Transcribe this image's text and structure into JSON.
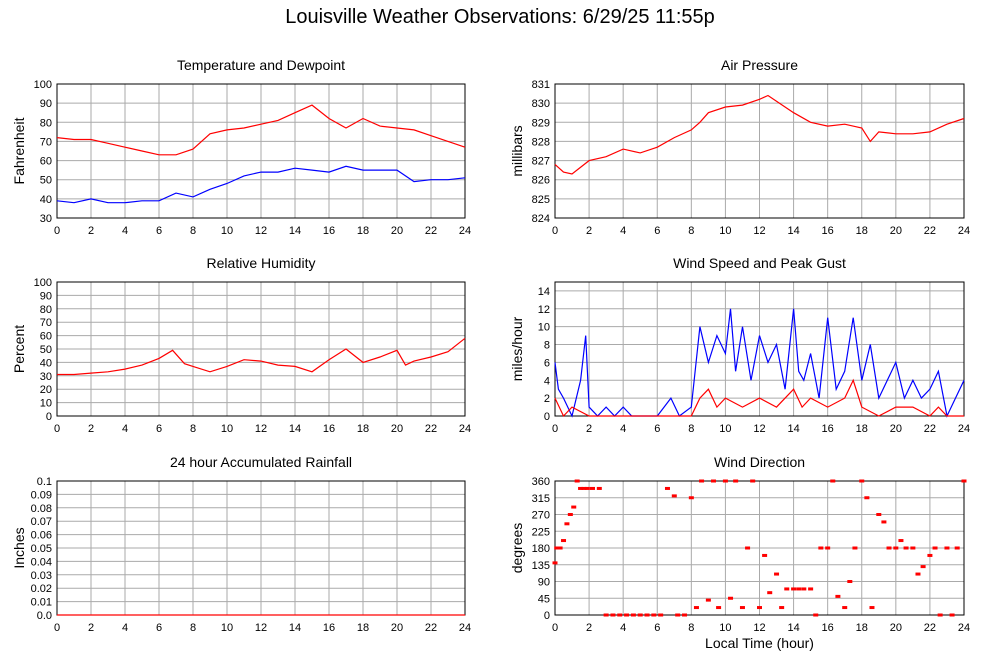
{
  "page_title": "Louisville Weather Observations: 6/29/25 11:55p",
  "colors": {
    "red": "#ff0000",
    "blue": "#0000ff",
    "grid": "#aaaaaa",
    "frame": "#000000"
  },
  "chart_data": [
    {
      "id": "temp",
      "type": "line",
      "title": "Temperature and Dewpoint",
      "xlabel": "",
      "ylabel": "Fahrenheit",
      "xlim": [
        0,
        24
      ],
      "ylim": [
        30,
        100
      ],
      "xticks": [
        0,
        2,
        4,
        6,
        8,
        10,
        12,
        14,
        16,
        18,
        20,
        22,
        24
      ],
      "yticks": [
        30,
        40,
        50,
        60,
        70,
        80,
        90,
        100
      ],
      "grid": true,
      "series": [
        {
          "color": "#ff0000",
          "x": [
            0,
            1,
            2,
            3,
            4,
            5,
            6,
            7,
            8,
            9,
            10,
            11,
            12,
            13,
            14,
            15,
            16,
            17,
            18,
            19,
            20,
            21,
            22,
            23,
            24
          ],
          "y": [
            72,
            71,
            71,
            69,
            67,
            65,
            63,
            63,
            66,
            74,
            76,
            77,
            79,
            81,
            85,
            89,
            82,
            77,
            82,
            78,
            77,
            76,
            73,
            70,
            67
          ]
        },
        {
          "color": "#0000ff",
          "x": [
            0,
            1,
            2,
            3,
            4,
            5,
            6,
            7,
            8,
            9,
            10,
            11,
            12,
            13,
            14,
            15,
            16,
            17,
            18,
            19,
            20,
            21,
            22,
            23,
            24
          ],
          "y": [
            39,
            38,
            40,
            38,
            38,
            39,
            39,
            43,
            41,
            45,
            48,
            52,
            54,
            54,
            56,
            55,
            54,
            57,
            55,
            55,
            55,
            49,
            50,
            50,
            51
          ]
        }
      ]
    },
    {
      "id": "pressure",
      "type": "line",
      "title": "Air Pressure",
      "xlabel": "",
      "ylabel": "millibars",
      "xlim": [
        0,
        24
      ],
      "ylim": [
        824,
        831
      ],
      "xticks": [
        0,
        2,
        4,
        6,
        8,
        10,
        12,
        14,
        16,
        18,
        20,
        22,
        24
      ],
      "yticks": [
        824,
        825,
        826,
        827,
        828,
        829,
        830,
        831
      ],
      "grid": true,
      "series": [
        {
          "color": "#ff0000",
          "x": [
            0,
            0.5,
            1,
            2,
            3,
            4,
            5,
            6,
            7,
            8,
            8.5,
            9,
            10,
            11,
            12,
            12.5,
            13,
            14,
            15,
            16,
            17,
            18,
            18.5,
            19,
            20,
            21,
            22,
            23,
            24
          ],
          "y": [
            826.8,
            826.4,
            826.3,
            827,
            827.2,
            827.6,
            827.4,
            827.7,
            828.2,
            828.6,
            829,
            829.5,
            829.8,
            829.9,
            830.2,
            830.4,
            830.1,
            829.5,
            829,
            828.8,
            828.9,
            828.7,
            828.0,
            828.5,
            828.4,
            828.4,
            828.5,
            828.9,
            829.2
          ]
        }
      ]
    },
    {
      "id": "humidity",
      "type": "line",
      "title": "Relative Humidity",
      "xlabel": "",
      "ylabel": "Percent",
      "xlim": [
        0,
        24
      ],
      "ylim": [
        0,
        100
      ],
      "xticks": [
        0,
        2,
        4,
        6,
        8,
        10,
        12,
        14,
        16,
        18,
        20,
        22,
        24
      ],
      "yticks": [
        0,
        10,
        20,
        30,
        40,
        50,
        60,
        70,
        80,
        90,
        100
      ],
      "grid": true,
      "series": [
        {
          "color": "#ff0000",
          "x": [
            0,
            1,
            2,
            3,
            4,
            5,
            6,
            6.8,
            7.5,
            8,
            9,
            10,
            11,
            12,
            13,
            14,
            15,
            16,
            17,
            18,
            19,
            20,
            20.5,
            21,
            22,
            23,
            24
          ],
          "y": [
            31,
            31,
            32,
            33,
            35,
            38,
            43,
            49,
            39,
            37,
            33,
            37,
            42,
            41,
            38,
            37,
            33,
            42,
            50,
            40,
            44,
            49,
            38,
            41,
            44,
            48,
            58
          ]
        }
      ]
    },
    {
      "id": "wind",
      "type": "line",
      "title": "Wind Speed and Peak Gust",
      "xlabel": "",
      "ylabel": "miles/hour",
      "xlim": [
        0,
        24
      ],
      "ylim": [
        0,
        15
      ],
      "xticks": [
        0,
        2,
        4,
        6,
        8,
        10,
        12,
        14,
        16,
        18,
        20,
        22,
        24
      ],
      "yticks": [
        0,
        2,
        4,
        6,
        8,
        10,
        12,
        14
      ],
      "grid": true,
      "series": [
        {
          "color": "#0000ff",
          "x": [
            0,
            0.2,
            0.5,
            1,
            1.5,
            1.8,
            2,
            2.5,
            3,
            3.5,
            4,
            4.5,
            5,
            6,
            6.8,
            7.3,
            8,
            8.5,
            9,
            9.5,
            10,
            10.3,
            10.6,
            11,
            11.5,
            12,
            12.5,
            13,
            13.5,
            14,
            14.3,
            14.6,
            15,
            15.5,
            16,
            16.5,
            17,
            17.5,
            18,
            18.5,
            19,
            19.5,
            20,
            20.5,
            21,
            21.5,
            22,
            22.5,
            23,
            23.5,
            24
          ],
          "y": [
            6,
            3,
            2,
            0,
            4,
            9,
            1,
            0,
            1,
            0,
            1,
            0,
            0,
            0,
            2,
            0,
            1,
            10,
            6,
            9,
            7,
            12,
            5,
            10,
            4,
            9,
            6,
            8,
            3,
            12,
            5,
            4,
            7,
            2,
            11,
            3,
            5,
            11,
            4,
            8,
            2,
            4,
            6,
            2,
            4,
            2,
            3,
            5,
            0,
            2,
            4
          ]
        },
        {
          "color": "#ff0000",
          "x": [
            0,
            0.5,
            1,
            2,
            8,
            8.5,
            9,
            9.5,
            10,
            11,
            12,
            13,
            14,
            14.5,
            15,
            16,
            17,
            17.5,
            18,
            19,
            20,
            21,
            22,
            22.5,
            23,
            24
          ],
          "y": [
            2,
            0,
            1,
            0,
            0,
            2,
            3,
            1,
            2,
            1,
            2,
            1,
            3,
            1,
            2,
            1,
            2,
            4,
            1,
            0,
            1,
            1,
            0,
            1,
            0,
            0
          ]
        }
      ]
    },
    {
      "id": "rain",
      "type": "line",
      "title": "24 hour Accumulated Rainfall",
      "xlabel": "",
      "ylabel": "Inches",
      "xlim": [
        0,
        24
      ],
      "ylim": [
        0,
        0.1
      ],
      "xticks": [
        0,
        2,
        4,
        6,
        8,
        10,
        12,
        14,
        16,
        18,
        20,
        22,
        24
      ],
      "yticks": [
        0.0,
        0.01,
        0.02,
        0.03,
        0.04,
        0.05,
        0.06,
        0.07,
        0.08,
        0.09,
        0.1
      ],
      "yticklabels": [
        "0.0",
        "0.01",
        "0.02",
        "0.03",
        "0.04",
        "0.05",
        "0.06",
        "0.07",
        "0.08",
        "0.09",
        "0.1"
      ],
      "grid": true,
      "series": [
        {
          "color": "#ff0000",
          "x": [
            0,
            24
          ],
          "y": [
            0,
            0
          ]
        }
      ]
    },
    {
      "id": "direction",
      "type": "scatter",
      "title": "Wind Direction",
      "xlabel": "Local Time (hour)",
      "ylabel": "degrees",
      "xlim": [
        0,
        24
      ],
      "ylim": [
        0,
        360
      ],
      "xticks": [
        0,
        2,
        4,
        6,
        8,
        10,
        12,
        14,
        16,
        18,
        20,
        22,
        24
      ],
      "yticks": [
        0,
        45,
        90,
        135,
        180,
        225,
        270,
        315,
        360
      ],
      "grid": true,
      "series": [
        {
          "color": "#ff0000",
          "x": [
            0,
            0.1,
            0.3,
            0.5,
            0.7,
            0.9,
            1.1,
            1.3,
            1.5,
            1.7,
            1.9,
            2.2,
            2.6,
            3,
            3.4,
            3.8,
            4.2,
            4.6,
            5,
            5.4,
            5.8,
            6.2,
            6.6,
            7,
            7.2,
            7.6,
            8,
            8.3,
            8.6,
            9,
            9.3,
            9.6,
            10,
            10.3,
            10.6,
            11,
            11.3,
            11.6,
            12,
            12.3,
            12.6,
            13,
            13.3,
            13.6,
            14,
            14.3,
            14.6,
            15,
            15.3,
            15.6,
            16,
            16.3,
            16.6,
            17,
            17.3,
            17.6,
            18,
            18.3,
            18.6,
            19,
            19.3,
            19.6,
            20,
            20.3,
            20.6,
            21,
            21.3,
            21.6,
            22,
            22.3,
            22.6,
            23,
            23.3,
            23.6,
            24
          ],
          "y": [
            140,
            180,
            180,
            200,
            245,
            270,
            290,
            360,
            340,
            340,
            340,
            340,
            340,
            0,
            0,
            0,
            0,
            0,
            0,
            0,
            0,
            0,
            340,
            320,
            0,
            0,
            315,
            20,
            360,
            40,
            360,
            20,
            360,
            45,
            360,
            20,
            180,
            360,
            20,
            160,
            60,
            110,
            20,
            70,
            70,
            70,
            70,
            70,
            0,
            180,
            180,
            360,
            50,
            20,
            90,
            180,
            360,
            315,
            20,
            270,
            250,
            180,
            180,
            200,
            180,
            180,
            110,
            130,
            160,
            180,
            0,
            180,
            0,
            180,
            360
          ]
        }
      ]
    }
  ]
}
